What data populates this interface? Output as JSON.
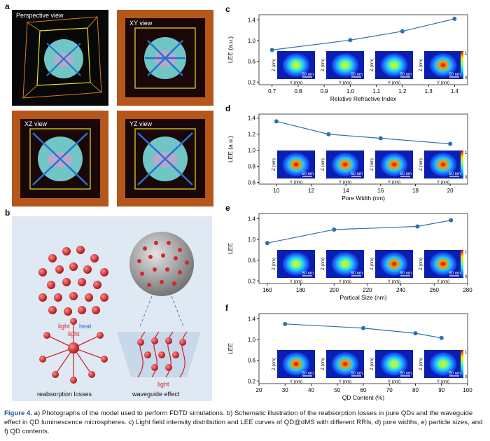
{
  "panels": {
    "a": {
      "label": "a",
      "views": [
        "Perspective view",
        "XY view",
        "XZ view",
        "YZ view"
      ]
    },
    "b": {
      "label": "b",
      "texts": {
        "light1": "light",
        "heat": "heat",
        "light2": "light",
        "light3": "light",
        "reabsorption": "reabsorption losses",
        "waveguide": "waveguide effect"
      }
    }
  },
  "colorbar": {
    "max": "1",
    "min": "0"
  },
  "chart_data": [
    {
      "panel": "c",
      "type": "line",
      "xlabel": "Relative Refractive Index",
      "ylabel": "LEE (a.u.)",
      "x": [
        0.7,
        1.0,
        1.2,
        1.4
      ],
      "values": [
        0.82,
        1.01,
        1.18,
        1.42
      ],
      "xlim": [
        0.65,
        1.45
      ],
      "ylim": [
        0.15,
        1.5
      ],
      "xticks": [
        "0.7",
        "0.8",
        "0.9",
        "1.0",
        "1.1",
        "1.2",
        "1.3",
        "1.4"
      ],
      "yticks": [
        "0.2",
        "0.6",
        "1.0",
        "1.4"
      ],
      "insets": {
        "axis_z": "Z (nm)",
        "axis_y": "Y (nm)",
        "scale": "50 nm"
      }
    },
    {
      "panel": "d",
      "type": "line",
      "xlabel": "Pore Width (nm)",
      "ylabel": "LEE (a.u.)",
      "x": [
        10,
        13,
        16,
        20
      ],
      "values": [
        1.36,
        1.2,
        1.15,
        1.08
      ],
      "xlim": [
        9,
        21
      ],
      "ylim": [
        0.58,
        1.45
      ],
      "xticks": [
        "10",
        "12",
        "14",
        "16",
        "18",
        "20"
      ],
      "yticks": [
        "0.6",
        "0.8",
        "1.0",
        "1.2",
        "1.4"
      ],
      "insets": {
        "axis_z": "Z (nm)",
        "axis_y": "Y (nm)",
        "scale": "50 nm"
      }
    },
    {
      "panel": "e",
      "type": "line",
      "xlabel": "Partical Size (nm)",
      "ylabel": "LEE",
      "x": [
        160,
        200,
        250,
        270
      ],
      "values": [
        0.93,
        1.19,
        1.25,
        1.37
      ],
      "xlim": [
        155,
        280
      ],
      "ylim": [
        0.15,
        1.5
      ],
      "xticks": [
        "160",
        "180",
        "200",
        "220",
        "240",
        "260",
        "280"
      ],
      "yticks": [
        "0.2",
        "0.6",
        "1.0",
        "1.4"
      ],
      "insets": {
        "axis_z": "Z (nm)",
        "axis_y": "Y (nm)",
        "scale": "50 nm"
      }
    },
    {
      "panel": "f",
      "type": "line",
      "xlabel": "QD Content (%)",
      "ylabel": "LEE",
      "x": [
        30,
        60,
        80,
        90
      ],
      "values": [
        1.3,
        1.22,
        1.12,
        1.03
      ],
      "xlim": [
        20,
        100
      ],
      "ylim": [
        0.15,
        1.5
      ],
      "xticks": [
        "20",
        "30",
        "40",
        "50",
        "60",
        "70",
        "80",
        "90",
        "100"
      ],
      "yticks": [
        "0.2",
        "0.6",
        "1.0",
        "1.4"
      ],
      "insets": {
        "axis_z": "Z (nm)",
        "axis_y": "Y (nm)",
        "scale": "50 nm"
      }
    }
  ],
  "caption": {
    "figure_label": "Figure 4.",
    "text": "a) Photographs of the model used to perform FDTD simulations. b) Schematic illustration of the reabsorption losses in pure QDs and the waveguide effect in QD luminescence microspheres. c) Light field intensity distribution and LEE curves of QD@dMS with different RRIs, d) pore widths, e) particle sizes, and f) QD contents."
  },
  "colors": {
    "line": "#2c6fb3",
    "frame": "#b5561a",
    "cell": "#3a0e0e",
    "sphere": "#6fc6c4",
    "arrow": "#2a6fd6",
    "qd": "#d0282b"
  }
}
